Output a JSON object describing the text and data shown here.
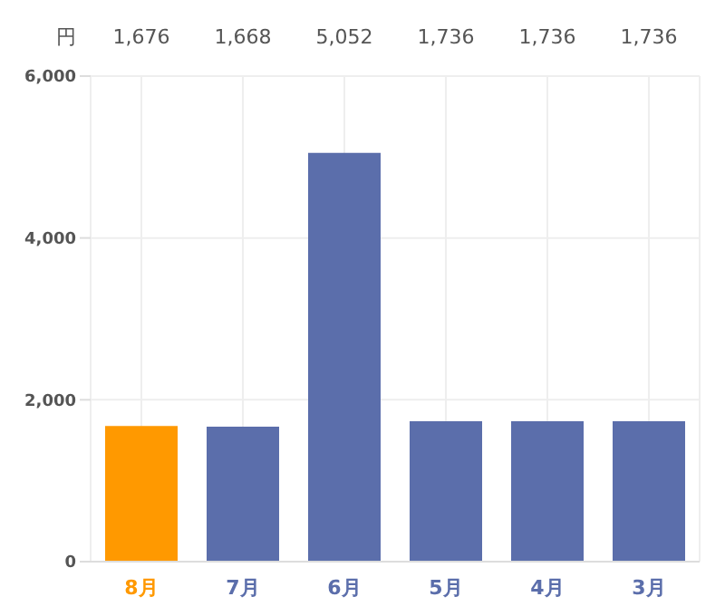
{
  "chart_data": {
    "type": "bar",
    "ylabel": "円",
    "categories": [
      "8月",
      "7月",
      "6月",
      "5月",
      "4月",
      "3月"
    ],
    "values": [
      1676,
      1668,
      5052,
      1736,
      1736,
      1736
    ],
    "colors": [
      "#ff9900",
      "#5b6eab",
      "#5b6eab",
      "#5b6eab",
      "#5b6eab",
      "#5b6eab"
    ],
    "value_labels": [
      "1,676",
      "1,668",
      "5,052",
      "1,736",
      "1,736",
      "1,736"
    ],
    "ylim": [
      0,
      6000
    ],
    "yticks": [
      {
        "value": 0,
        "label": "0"
      },
      {
        "value": 2000,
        "label": "2,000"
      },
      {
        "value": 4000,
        "label": "4,000"
      },
      {
        "value": 6000,
        "label": "6,000"
      }
    ],
    "grid": true,
    "legend": false
  }
}
